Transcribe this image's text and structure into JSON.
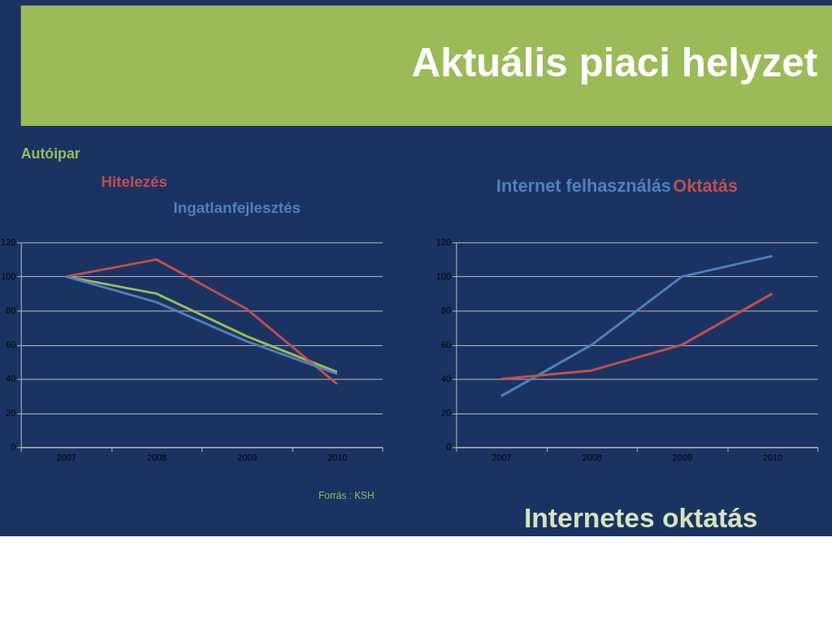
{
  "chart_data": [
    {
      "type": "line",
      "categories": [
        "2007",
        "2008",
        "2009",
        "2010"
      ],
      "ylim": [
        0,
        120
      ],
      "yticks": [
        0,
        20,
        40,
        60,
        80,
        100,
        120
      ],
      "grid": "y",
      "series": [
        {
          "name": "Autóipar",
          "color": "#9bbb59",
          "values": [
            100,
            90,
            65,
            44
          ]
        },
        {
          "name": "Hitelezés",
          "color": "#c0504d",
          "values": [
            100,
            110,
            81,
            37
          ]
        },
        {
          "name": "Ingatlanfejlesztés",
          "color": "#4f81bd",
          "values": [
            100,
            85,
            62,
            43
          ]
        }
      ],
      "annotations": [
        "Forrás : KSH"
      ]
    },
    {
      "type": "line",
      "title": "Aktuális piaci helyzet",
      "categories": [
        "2007",
        "2008",
        "2009",
        "2010"
      ],
      "ylim": [
        0,
        120
      ],
      "yticks": [
        0,
        20,
        40,
        60,
        80,
        100,
        120
      ],
      "grid": "y",
      "series": [
        {
          "name": "Internet felhasználás",
          "color": "#4f81bd",
          "values": [
            30,
            60,
            100,
            112
          ]
        },
        {
          "name": "Oktatás",
          "color": "#c0504d",
          "values": [
            40,
            45,
            60,
            90
          ]
        }
      ],
      "annotations": [
        "Internetes oktatás"
      ]
    }
  ]
}
